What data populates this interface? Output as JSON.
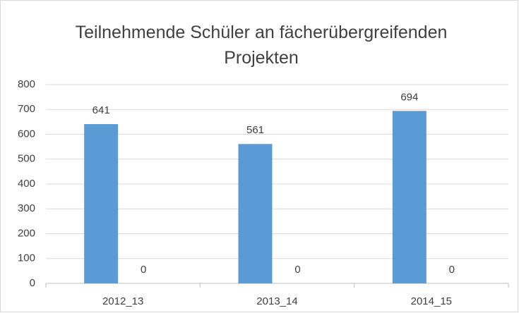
{
  "chart_data": {
    "type": "bar",
    "title": "Teilnehmende Schüler an fächerübergreifenden Projekten",
    "categories": [
      "2012_13",
      "2013_14",
      "2014_15"
    ],
    "series": [
      {
        "color": "#5b9bd5",
        "values": [
          641,
          561,
          694
        ]
      },
      {
        "color": "#ed7d31",
        "values": [
          0,
          0,
          0
        ]
      }
    ],
    "ylim": [
      0,
      800
    ],
    "yticks": [
      0,
      100,
      200,
      300,
      400,
      500,
      600,
      700,
      800
    ],
    "grid": true
  }
}
